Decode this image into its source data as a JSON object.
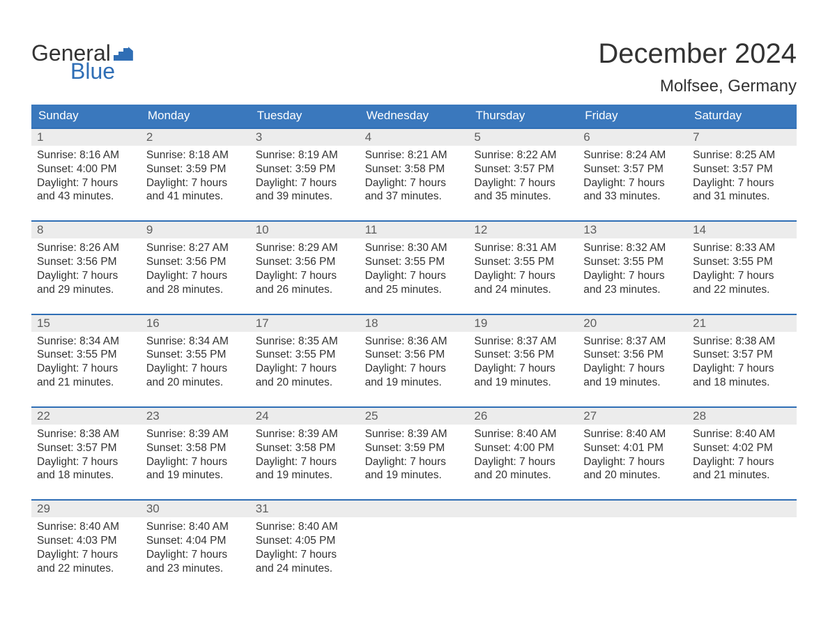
{
  "logo": {
    "text1": "General",
    "text2": "Blue"
  },
  "title": "December 2024",
  "location": "Molfsee, Germany",
  "colors": {
    "header_bg": "#3a78bd",
    "header_text": "#ffffff",
    "week_border": "#2f6eb5",
    "daynum_bg": "#ececec",
    "daynum_text": "#5d5d5d",
    "body_text": "#333333",
    "logo_blue": "#2f6eb5",
    "page_bg": "#ffffff"
  },
  "fonts": {
    "title_size": 40,
    "location_size": 24,
    "header_size": 17,
    "daynum_size": 17,
    "body_size": 15.5,
    "family": "Arial"
  },
  "day_names": [
    "Sunday",
    "Monday",
    "Tuesday",
    "Wednesday",
    "Thursday",
    "Friday",
    "Saturday"
  ],
  "weeks": [
    [
      {
        "n": "1",
        "sr": "8:16 AM",
        "ss": "4:00 PM",
        "dl1": "7 hours",
        "dl2": "43 minutes."
      },
      {
        "n": "2",
        "sr": "8:18 AM",
        "ss": "3:59 PM",
        "dl1": "7 hours",
        "dl2": "41 minutes."
      },
      {
        "n": "3",
        "sr": "8:19 AM",
        "ss": "3:59 PM",
        "dl1": "7 hours",
        "dl2": "39 minutes."
      },
      {
        "n": "4",
        "sr": "8:21 AM",
        "ss": "3:58 PM",
        "dl1": "7 hours",
        "dl2": "37 minutes."
      },
      {
        "n": "5",
        "sr": "8:22 AM",
        "ss": "3:57 PM",
        "dl1": "7 hours",
        "dl2": "35 minutes."
      },
      {
        "n": "6",
        "sr": "8:24 AM",
        "ss": "3:57 PM",
        "dl1": "7 hours",
        "dl2": "33 minutes."
      },
      {
        "n": "7",
        "sr": "8:25 AM",
        "ss": "3:57 PM",
        "dl1": "7 hours",
        "dl2": "31 minutes."
      }
    ],
    [
      {
        "n": "8",
        "sr": "8:26 AM",
        "ss": "3:56 PM",
        "dl1": "7 hours",
        "dl2": "29 minutes."
      },
      {
        "n": "9",
        "sr": "8:27 AM",
        "ss": "3:56 PM",
        "dl1": "7 hours",
        "dl2": "28 minutes."
      },
      {
        "n": "10",
        "sr": "8:29 AM",
        "ss": "3:56 PM",
        "dl1": "7 hours",
        "dl2": "26 minutes."
      },
      {
        "n": "11",
        "sr": "8:30 AM",
        "ss": "3:55 PM",
        "dl1": "7 hours",
        "dl2": "25 minutes."
      },
      {
        "n": "12",
        "sr": "8:31 AM",
        "ss": "3:55 PM",
        "dl1": "7 hours",
        "dl2": "24 minutes."
      },
      {
        "n": "13",
        "sr": "8:32 AM",
        "ss": "3:55 PM",
        "dl1": "7 hours",
        "dl2": "23 minutes."
      },
      {
        "n": "14",
        "sr": "8:33 AM",
        "ss": "3:55 PM",
        "dl1": "7 hours",
        "dl2": "22 minutes."
      }
    ],
    [
      {
        "n": "15",
        "sr": "8:34 AM",
        "ss": "3:55 PM",
        "dl1": "7 hours",
        "dl2": "21 minutes."
      },
      {
        "n": "16",
        "sr": "8:34 AM",
        "ss": "3:55 PM",
        "dl1": "7 hours",
        "dl2": "20 minutes."
      },
      {
        "n": "17",
        "sr": "8:35 AM",
        "ss": "3:55 PM",
        "dl1": "7 hours",
        "dl2": "20 minutes."
      },
      {
        "n": "18",
        "sr": "8:36 AM",
        "ss": "3:56 PM",
        "dl1": "7 hours",
        "dl2": "19 minutes."
      },
      {
        "n": "19",
        "sr": "8:37 AM",
        "ss": "3:56 PM",
        "dl1": "7 hours",
        "dl2": "19 minutes."
      },
      {
        "n": "20",
        "sr": "8:37 AM",
        "ss": "3:56 PM",
        "dl1": "7 hours",
        "dl2": "19 minutes."
      },
      {
        "n": "21",
        "sr": "8:38 AM",
        "ss": "3:57 PM",
        "dl1": "7 hours",
        "dl2": "18 minutes."
      }
    ],
    [
      {
        "n": "22",
        "sr": "8:38 AM",
        "ss": "3:57 PM",
        "dl1": "7 hours",
        "dl2": "18 minutes."
      },
      {
        "n": "23",
        "sr": "8:39 AM",
        "ss": "3:58 PM",
        "dl1": "7 hours",
        "dl2": "19 minutes."
      },
      {
        "n": "24",
        "sr": "8:39 AM",
        "ss": "3:58 PM",
        "dl1": "7 hours",
        "dl2": "19 minutes."
      },
      {
        "n": "25",
        "sr": "8:39 AM",
        "ss": "3:59 PM",
        "dl1": "7 hours",
        "dl2": "19 minutes."
      },
      {
        "n": "26",
        "sr": "8:40 AM",
        "ss": "4:00 PM",
        "dl1": "7 hours",
        "dl2": "20 minutes."
      },
      {
        "n": "27",
        "sr": "8:40 AM",
        "ss": "4:01 PM",
        "dl1": "7 hours",
        "dl2": "20 minutes."
      },
      {
        "n": "28",
        "sr": "8:40 AM",
        "ss": "4:02 PM",
        "dl1": "7 hours",
        "dl2": "21 minutes."
      }
    ],
    [
      {
        "n": "29",
        "sr": "8:40 AM",
        "ss": "4:03 PM",
        "dl1": "7 hours",
        "dl2": "22 minutes."
      },
      {
        "n": "30",
        "sr": "8:40 AM",
        "ss": "4:04 PM",
        "dl1": "7 hours",
        "dl2": "23 minutes."
      },
      {
        "n": "31",
        "sr": "8:40 AM",
        "ss": "4:05 PM",
        "dl1": "7 hours",
        "dl2": "24 minutes."
      },
      null,
      null,
      null,
      null
    ]
  ],
  "labels": {
    "sunrise": "Sunrise:",
    "sunset": "Sunset:",
    "daylight": "Daylight:",
    "and": "and"
  }
}
